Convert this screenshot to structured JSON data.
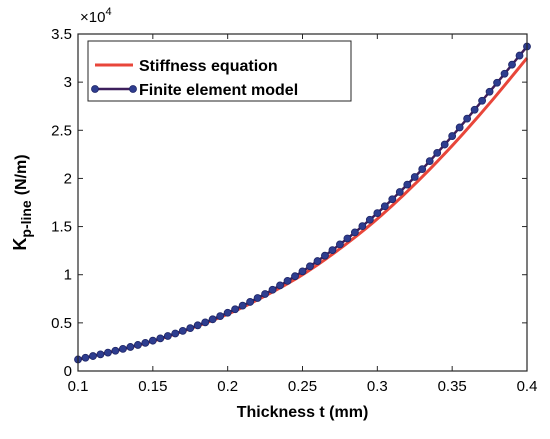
{
  "chart_data": {
    "type": "line",
    "xlabel": "Thickness t (mm)",
    "ylabel_main": "K",
    "ylabel_sub": "p-line",
    "ylabel_unit": "(N/m)",
    "y_multiplier_base": "×10",
    "y_multiplier_exp": "4",
    "xlim": [
      0.1,
      0.4
    ],
    "ylim": [
      0,
      35000
    ],
    "x_ticks": [
      0.1,
      0.15,
      0.2,
      0.25,
      0.3,
      0.35,
      0.4
    ],
    "x_tick_labels": [
      "0.1",
      "0.15",
      "0.2",
      "0.25",
      "0.3",
      "0.35",
      "0.4"
    ],
    "y_ticks": [
      0,
      5000,
      10000,
      15000,
      20000,
      25000,
      30000,
      35000
    ],
    "y_tick_labels": [
      "0",
      "0.5",
      "1",
      "1.5",
      "2",
      "2.5",
      "3",
      "3.5"
    ],
    "grid": false,
    "legend_position": "top-left",
    "series": [
      {
        "name": "Stiffness equation",
        "color": "#e8463a",
        "style": "line",
        "x": [
          0.1,
          0.125,
          0.15,
          0.175,
          0.2,
          0.225,
          0.25,
          0.275,
          0.3,
          0.325,
          0.35,
          0.375,
          0.4
        ],
        "y": [
          1200,
          2100,
          3100,
          4400,
          5900,
          7800,
          10000,
          12700,
          15800,
          19400,
          23400,
          27800,
          32500
        ]
      },
      {
        "name": "Finite element model",
        "color": "#3d1f5c",
        "marker_color": "#2e3d8f",
        "style": "line-marker",
        "x": [
          0.1,
          0.125,
          0.15,
          0.175,
          0.2,
          0.225,
          0.25,
          0.275,
          0.3,
          0.325,
          0.35,
          0.375,
          0.4
        ],
        "y": [
          1200,
          2100,
          3150,
          4450,
          6050,
          8000,
          10350,
          13150,
          16400,
          20150,
          24400,
          29000,
          33700
        ]
      }
    ]
  }
}
